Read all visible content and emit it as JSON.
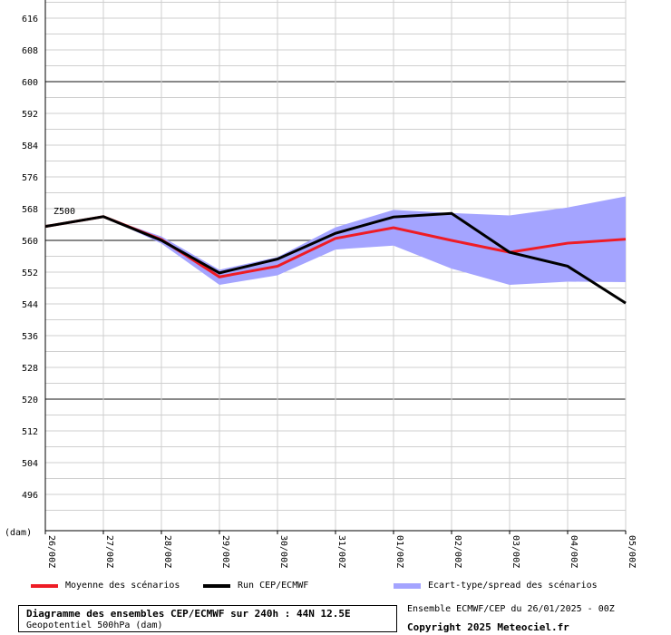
{
  "chart_data": {
    "type": "line",
    "ylabel": "(dam)",
    "series_label": "Z500",
    "ylim": [
      488,
      620
    ],
    "yticks": [
      616,
      608,
      600,
      592,
      584,
      576,
      568,
      560,
      552,
      544,
      536,
      528,
      520,
      512,
      504,
      496
    ],
    "categories": [
      "26/00Z",
      "27/00Z",
      "28/00Z",
      "29/00Z",
      "30/00Z",
      "31/00Z",
      "01/00Z",
      "02/00Z",
      "03/00Z",
      "04/00Z",
      "05/00Z"
    ],
    "series": [
      {
        "name": "Moyenne des scénarios",
        "color": "#ee1c25",
        "values": [
          563.5,
          566,
          560.2,
          550.8,
          553.5,
          560.5,
          563.2,
          560,
          557,
          559.3,
          560.3
        ]
      },
      {
        "name": "Run CEP/ECMWF",
        "color": "#000000",
        "values": [
          563.5,
          566,
          560,
          551.8,
          555.3,
          561.8,
          565.9,
          566.8,
          557,
          553.5,
          544.2
        ]
      },
      {
        "name": "Ecart-type/spread des scénarios",
        "color": "#a4a4ff",
        "upper": [
          563.5,
          566,
          561,
          552.6,
          555.8,
          563.3,
          567.7,
          566.9,
          566.3,
          568.3,
          571.1
        ],
        "lower": [
          563.5,
          566,
          559.2,
          548.8,
          551.2,
          557.7,
          558.7,
          552.9,
          548.8,
          549.6,
          549.5
        ]
      }
    ]
  },
  "info": {
    "title": "Diagramme des ensembles CEP/ECMWF sur 240h : 44N 12.5E",
    "subtitle": "Geopotentiel 500hPa (dam)",
    "run": "Ensemble ECMWF/CEP du 26/01/2025 - 00Z",
    "copyright": "Copyright 2025 Meteociel.fr"
  }
}
